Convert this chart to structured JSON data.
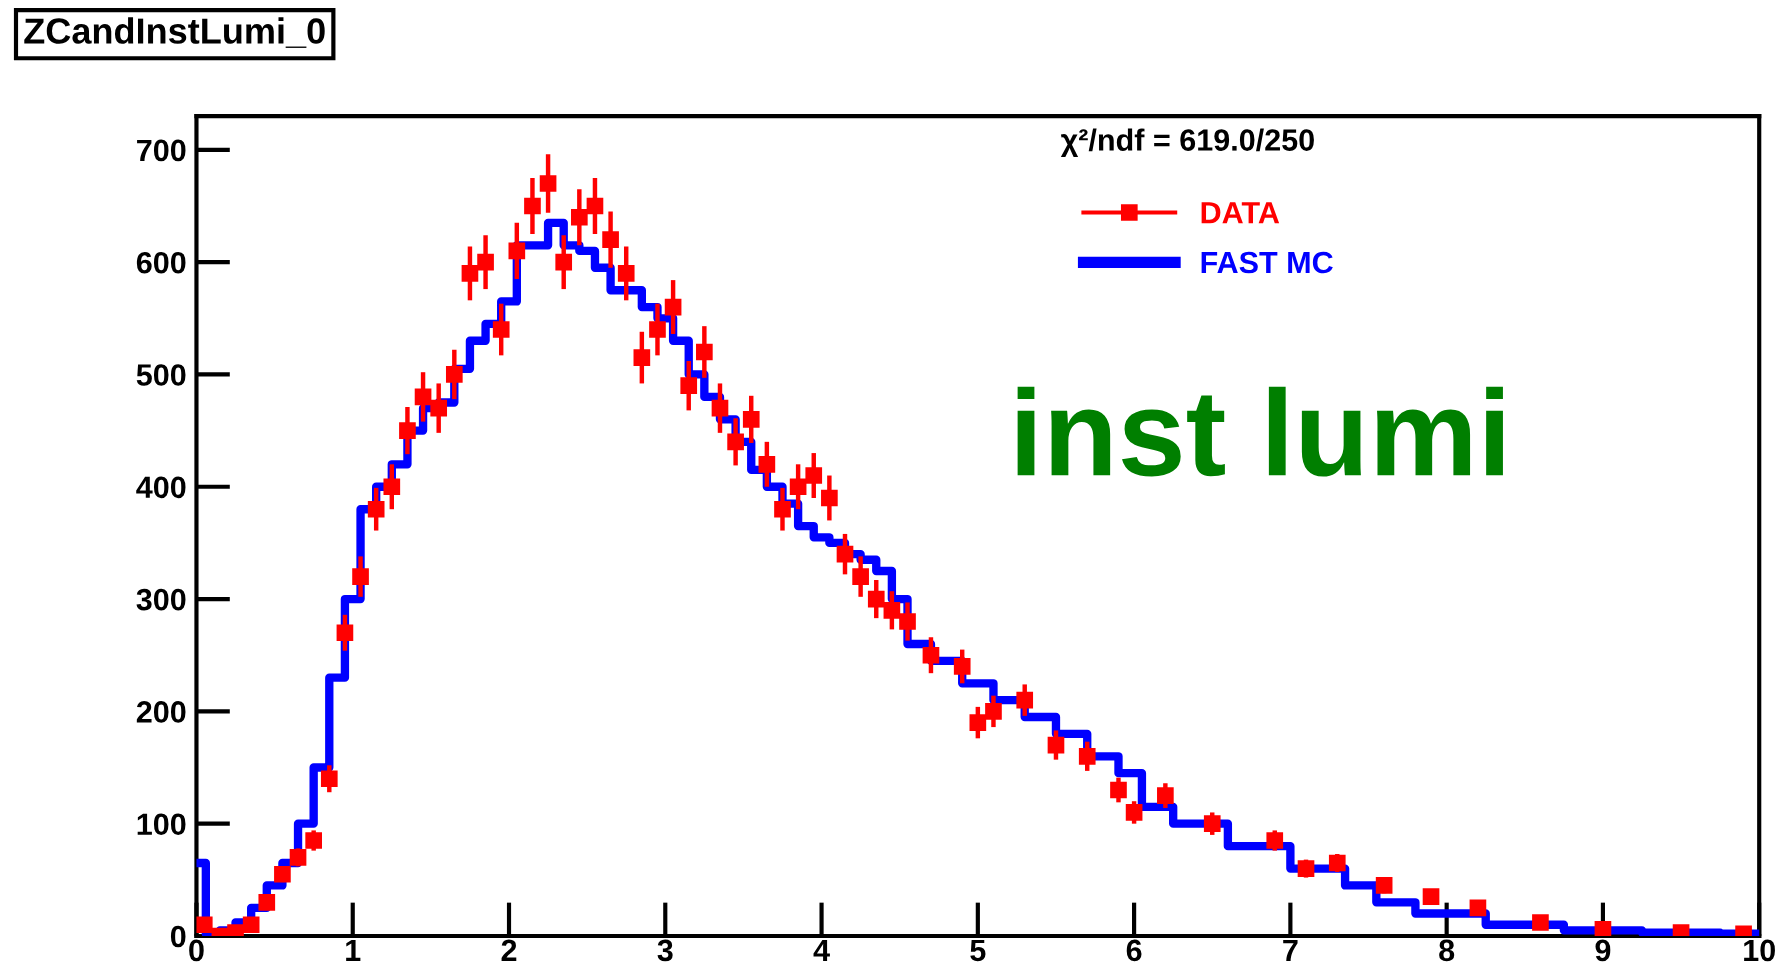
{
  "chart_data": {
    "type": "scatter",
    "title": "ZCandInstLumi_0",
    "annotations": [
      "χ²/ndf = 619.0/250",
      "inst lumi"
    ],
    "xlim": [
      0,
      10
    ],
    "xticks": [
      0,
      1,
      2,
      3,
      4,
      5,
      6,
      7,
      8,
      9,
      10
    ],
    "ylim": [
      0,
      730
    ],
    "yticks": [
      0,
      100,
      200,
      300,
      400,
      500,
      600,
      700
    ],
    "grid": false,
    "legend": "top right",
    "series": [
      {
        "name": "DATA",
        "color": "#ff0000",
        "marker": "square",
        "x": [
          0.05,
          0.15,
          0.25,
          0.35,
          0.45,
          0.55,
          0.65,
          0.75,
          0.85,
          0.95,
          1.05,
          1.15,
          1.25,
          1.35,
          1.45,
          1.55,
          1.65,
          1.75,
          1.85,
          1.95,
          2.05,
          2.15,
          2.25,
          2.35,
          2.45,
          2.55,
          2.65,
          2.75,
          2.85,
          2.95,
          3.05,
          3.15,
          3.25,
          3.35,
          3.45,
          3.55,
          3.65,
          3.75,
          3.85,
          3.95,
          4.05,
          4.15,
          4.25,
          4.35,
          4.45,
          4.55,
          4.7,
          4.9,
          5.0,
          5.1,
          5.3,
          5.5,
          5.7,
          5.9,
          6.0,
          6.2,
          6.5,
          6.9,
          7.1,
          7.3,
          7.6,
          7.9,
          8.2,
          8.6,
          9.0,
          9.5,
          9.9
        ],
        "values": [
          10,
          0,
          3,
          10,
          30,
          55,
          70,
          85,
          140,
          270,
          320,
          380,
          400,
          450,
          480,
          470,
          500,
          590,
          600,
          540,
          610,
          650,
          670,
          600,
          640,
          650,
          620,
          590,
          515,
          540,
          560,
          490,
          520,
          470,
          440,
          460,
          420,
          380,
          400,
          410,
          390,
          340,
          320,
          300,
          290,
          280,
          250,
          240,
          190,
          200,
          210,
          170,
          160,
          130,
          110,
          125,
          100,
          85,
          60,
          65,
          45,
          35,
          25,
          12,
          6,
          3,
          2
        ],
        "errors": [
          3,
          null,
          2,
          3,
          5,
          7,
          8,
          9,
          12,
          16,
          18,
          19,
          20,
          21,
          22,
          22,
          22,
          24,
          24,
          23,
          25,
          25,
          26,
          24,
          25,
          25,
          25,
          24,
          23,
          23,
          24,
          22,
          23,
          22,
          21,
          21,
          20,
          19,
          20,
          20,
          20,
          18,
          18,
          17,
          17,
          17,
          16,
          15,
          14,
          14,
          14,
          13,
          13,
          11,
          10,
          11,
          10,
          9,
          8,
          8,
          7,
          6,
          5,
          3,
          2,
          2,
          null
        ]
      },
      {
        "name": "FAST MC",
        "type": "step",
        "color": "#0000ff",
        "x": [
          0.02,
          0.1,
          0.2,
          0.3,
          0.4,
          0.5,
          0.6,
          0.7,
          0.8,
          0.9,
          1.0,
          1.1,
          1.2,
          1.3,
          1.4,
          1.5,
          1.6,
          1.7,
          1.8,
          1.9,
          2.0,
          2.1,
          2.2,
          2.3,
          2.4,
          2.5,
          2.6,
          2.7,
          2.8,
          2.9,
          3.0,
          3.1,
          3.2,
          3.3,
          3.4,
          3.5,
          3.6,
          3.7,
          3.8,
          3.9,
          4.0,
          4.1,
          4.2,
          4.3,
          4.4,
          4.5,
          4.6,
          4.8,
          5.0,
          5.2,
          5.4,
          5.6,
          5.8,
          6.0,
          6.1,
          6.4,
          6.8,
          7.2,
          7.5,
          7.6,
          8.0,
          8.5,
          9.0,
          9.5,
          10.0
        ],
        "values": [
          65,
          2,
          5,
          12,
          25,
          45,
          65,
          100,
          150,
          230,
          300,
          380,
          400,
          420,
          450,
          470,
          475,
          505,
          530,
          545,
          565,
          615,
          615,
          635,
          615,
          610,
          595,
          575,
          575,
          560,
          550,
          530,
          500,
          480,
          460,
          440,
          415,
          400,
          385,
          365,
          355,
          350,
          340,
          335,
          325,
          300,
          260,
          245,
          225,
          210,
          195,
          180,
          160,
          145,
          115,
          100,
          80,
          60,
          45,
          30,
          20,
          10,
          5,
          3,
          2
        ]
      }
    ]
  }
}
